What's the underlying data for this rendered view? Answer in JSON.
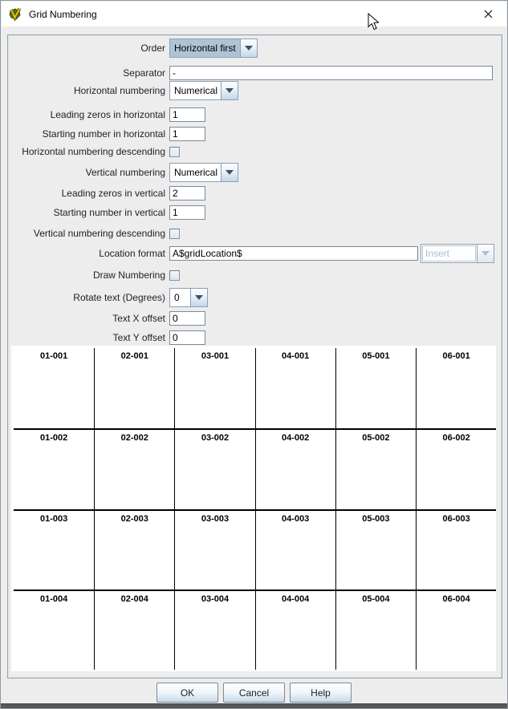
{
  "window": {
    "title": "Grid Numbering"
  },
  "icons": {
    "app_icon": "v-leaf-logo",
    "close_icon": "x",
    "combo_arrow_icon": "chevron-down-triangle",
    "cursor_icon": "arrow-pointer"
  },
  "colors": {
    "titlebar_bg": "#ffffff",
    "content_bg": "#ededed",
    "combo_selection_bg": "#aec3d6",
    "control_border": "#7b8a99",
    "grid_line": "#000000",
    "button_gradient_bottom": "#c7d9ea"
  },
  "form": {
    "order": {
      "label": "Order",
      "value": "Horizontal first"
    },
    "separator": {
      "label": "Separator",
      "value": "-"
    },
    "h_numbering": {
      "label": "Horizontal numbering",
      "value": "Numerical"
    },
    "h_leading_zeros": {
      "label": "Leading zeros in horizontal",
      "value": "1"
    },
    "h_start": {
      "label": "Starting number in horizontal",
      "value": "1"
    },
    "h_descending": {
      "label": "Horizontal numbering descending",
      "checked": false
    },
    "v_numbering": {
      "label": "Vertical numbering",
      "value": "Numerical"
    },
    "v_leading_zeros": {
      "label": "Leading zeros in vertical",
      "value": "2"
    },
    "v_start": {
      "label": "Starting number in vertical",
      "value": "1"
    },
    "v_descending": {
      "label": "Vertical numbering descending",
      "checked": false
    },
    "location_format": {
      "label": "Location format",
      "value": "A$gridLocation$",
      "insert_label": "Insert"
    },
    "draw_numbering": {
      "label": "Draw Numbering",
      "checked": false
    },
    "rotate": {
      "label": "Rotate text (Degrees)",
      "value": "0"
    },
    "text_x": {
      "label": "Text X offset",
      "value": "0"
    },
    "text_y": {
      "label": "Text Y offset",
      "value": "0"
    }
  },
  "grid_preview": {
    "columns": 6,
    "rows_count": 4,
    "rows": [
      [
        "01-001",
        "02-001",
        "03-001",
        "04-001",
        "05-001",
        "06-001"
      ],
      [
        "01-002",
        "02-002",
        "03-002",
        "04-002",
        "05-002",
        "06-002"
      ],
      [
        "01-003",
        "02-003",
        "03-003",
        "04-003",
        "05-003",
        "06-003"
      ],
      [
        "01-004",
        "02-004",
        "03-004",
        "04-004",
        "05-004",
        "06-004"
      ]
    ]
  },
  "footer": {
    "ok": "OK",
    "cancel": "Cancel",
    "help": "Help"
  }
}
